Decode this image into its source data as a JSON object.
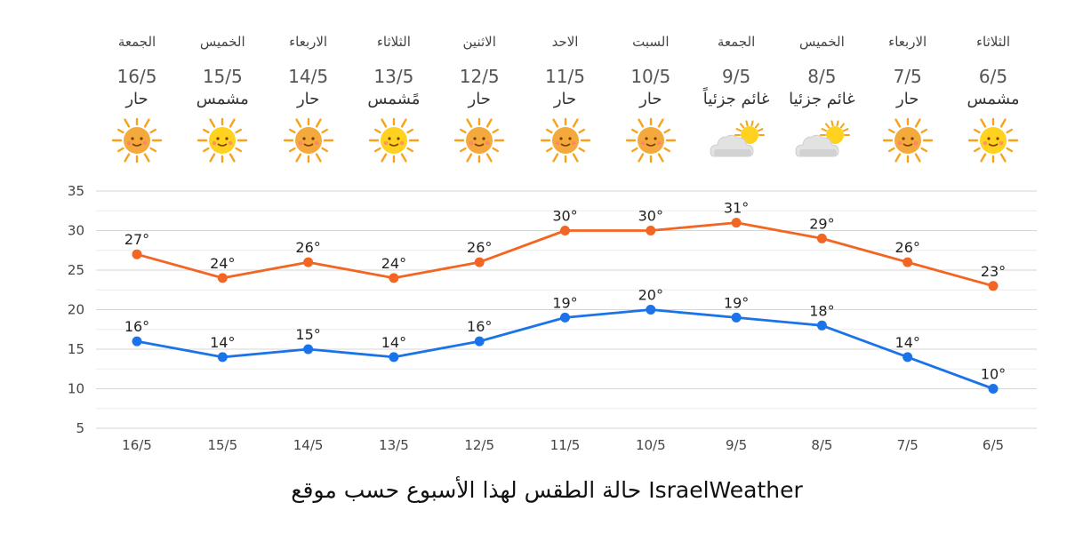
{
  "forecast": [
    {
      "day": "الجمعة",
      "date": "16/5",
      "condition": "حار",
      "icon": "sun-hot-icon"
    },
    {
      "day": "الخميس",
      "date": "15/5",
      "condition": "مشمس",
      "icon": "sun-icon"
    },
    {
      "day": "الاربعاء",
      "date": "14/5",
      "condition": "حار",
      "icon": "sun-hot-icon"
    },
    {
      "day": "الثلاثاء",
      "date": "13/5",
      "condition": "مًشمس",
      "icon": "sun-icon"
    },
    {
      "day": "الاثنين",
      "date": "12/5",
      "condition": "حار",
      "icon": "sun-hot-icon"
    },
    {
      "day": "الاحد",
      "date": "11/5",
      "condition": "حار",
      "icon": "sun-hot-icon"
    },
    {
      "day": "السبت",
      "date": "10/5",
      "condition": "حار",
      "icon": "sun-hot-icon"
    },
    {
      "day": "الجمعة",
      "date": "9/5",
      "condition": "غائم جزئياً",
      "icon": "partly-cloudy-icon"
    },
    {
      "day": "الخميس",
      "date": "8/5",
      "condition": "غائم جزئيا",
      "icon": "partly-cloudy-icon"
    },
    {
      "day": "الاربعاء",
      "date": "7/5",
      "condition": "حار",
      "icon": "sun-hot-icon"
    },
    {
      "day": "الثلاثاء",
      "date": "6/5",
      "condition": "مشمس",
      "icon": "sun-icon"
    }
  ],
  "chart_data": {
    "type": "line",
    "categories": [
      "16/5",
      "15/5",
      "14/5",
      "13/5",
      "12/5",
      "11/5",
      "10/5",
      "9/5",
      "8/5",
      "7/5",
      "6/5"
    ],
    "series": [
      {
        "values": [
          27,
          24,
          26,
          24,
          26,
          30,
          30,
          31,
          29,
          26,
          23
        ],
        "color": "#f26522"
      },
      {
        "values": [
          16,
          14,
          15,
          14,
          16,
          19,
          20,
          19,
          18,
          14,
          10
        ],
        "color": "#1a73e8"
      }
    ],
    "ylim": [
      5,
      35
    ],
    "yticks": [
      5,
      10,
      15,
      20,
      25,
      30,
      35
    ],
    "label_suffix": "°",
    "grid": true
  },
  "colors": {
    "sun": "#f7a21b",
    "sun_face": "#f4a93c",
    "sun_light": "#ffd21f",
    "cloud": "#d9d9d9"
  },
  "caption": "حالة الطقس لهذا الأسبوع حسب موقع IsraelWeather"
}
